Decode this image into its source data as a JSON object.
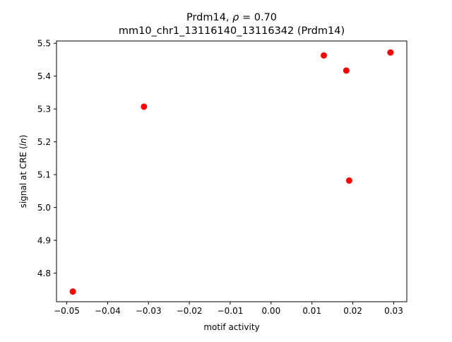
{
  "chart_data": {
    "type": "scatter",
    "title_line1_prefix": "Prdm14, ",
    "title_line1_rho": "ρ",
    "title_line1_suffix": " = 0.70",
    "title_line2": "mm10_chr1_13116140_13116342 (Prdm14)",
    "xlabel": "motif activity",
    "ylabel_prefix": "signal at CRE (",
    "ylabel_italic": "ln",
    "ylabel_suffix": ")",
    "xlim": [
      -0.0525,
      0.0332
    ],
    "ylim": [
      4.713,
      5.507
    ],
    "xticks": [
      -0.05,
      -0.04,
      -0.03,
      -0.02,
      -0.01,
      0.0,
      0.01,
      0.02,
      0.03
    ],
    "xtick_labels": [
      "−0.05",
      "−0.04",
      "−0.03",
      "−0.02",
      "−0.01",
      "0.00",
      "0.01",
      "0.02",
      "0.03"
    ],
    "yticks": [
      4.8,
      4.9,
      5.0,
      5.1,
      5.2,
      5.3,
      5.4,
      5.5
    ],
    "ytick_labels": [
      "4.8",
      "4.9",
      "5.0",
      "5.1",
      "5.2",
      "5.3",
      "5.4",
      "5.5"
    ],
    "grid": false,
    "marker_color": "#ff0000",
    "points": [
      {
        "x": -0.0485,
        "y": 4.744
      },
      {
        "x": -0.0311,
        "y": 5.307
      },
      {
        "x": 0.0129,
        "y": 5.463
      },
      {
        "x": 0.0184,
        "y": 5.417
      },
      {
        "x": 0.0191,
        "y": 5.082
      },
      {
        "x": 0.0292,
        "y": 5.472
      }
    ]
  }
}
